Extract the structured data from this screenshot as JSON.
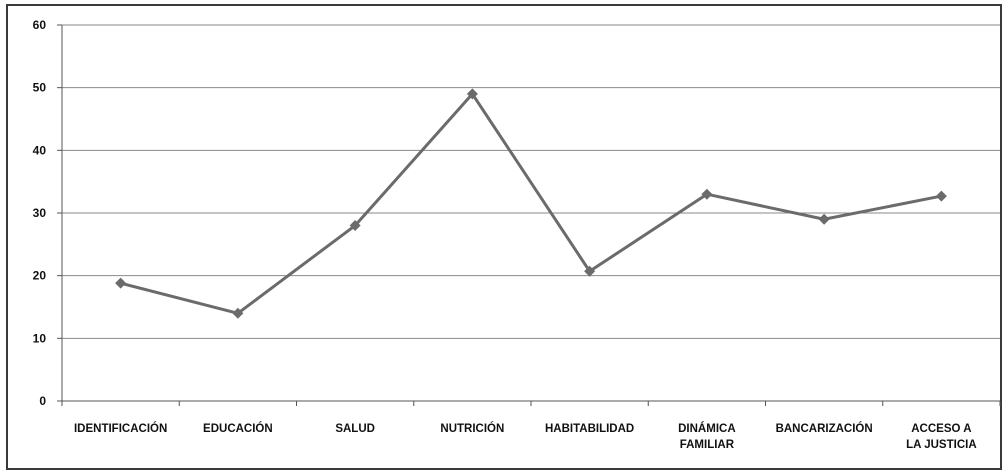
{
  "chart_data": {
    "type": "line",
    "title": "",
    "xlabel": "",
    "ylabel": "",
    "ylim": [
      0,
      60
    ],
    "yticks": [
      "0",
      "10",
      "20",
      "30",
      "40",
      "50",
      "60"
    ],
    "grid": true,
    "legend": "none",
    "categories": [
      "IDENTIFICACIÓN",
      "EDUCACIÓN",
      "SALUD",
      "NUTRICIÓN",
      "HABITABILIDAD",
      "DINÁMICA FAMILIAR",
      "BANCARIZACIÓN",
      "ACCESO A LA JUSTICIA"
    ],
    "series": [
      {
        "values": [
          18.8,
          14.0,
          28.0,
          49.0,
          20.7,
          33.0,
          29.0,
          32.7
        ],
        "color": "#6b6b6b"
      }
    ]
  }
}
